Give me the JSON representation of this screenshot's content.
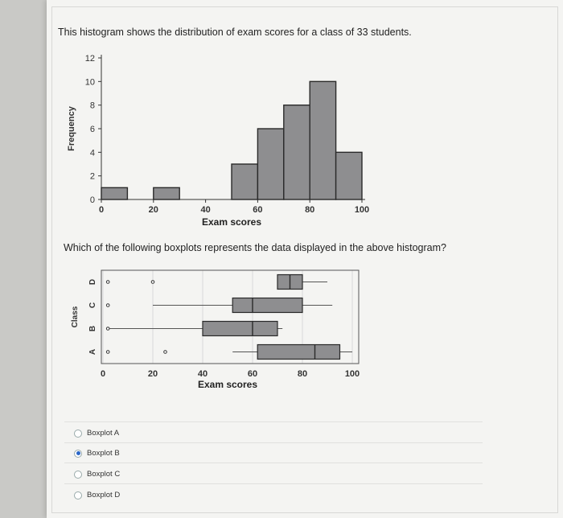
{
  "question": {
    "intro": "This histogram shows the distribution of exam scores for a class of 33 students.",
    "prompt": "Which of the following boxplots represents the data displayed in the above histogram?"
  },
  "chart_data": [
    {
      "type": "bar",
      "xlabel": "Exam scores",
      "ylabel": "Frequency",
      "xlim": [
        0,
        100
      ],
      "ylim": [
        0,
        12
      ],
      "x_ticks": [
        0,
        20,
        40,
        60,
        80,
        100
      ],
      "y_ticks": [
        0,
        2,
        4,
        6,
        8,
        10,
        12
      ],
      "bins": [
        {
          "start": 0,
          "end": 10,
          "value": 1
        },
        {
          "start": 10,
          "end": 20,
          "value": 0
        },
        {
          "start": 20,
          "end": 30,
          "value": 1
        },
        {
          "start": 30,
          "end": 40,
          "value": 0
        },
        {
          "start": 40,
          "end": 50,
          "value": 0
        },
        {
          "start": 50,
          "end": 60,
          "value": 3
        },
        {
          "start": 60,
          "end": 70,
          "value": 6
        },
        {
          "start": 70,
          "end": 80,
          "value": 8
        },
        {
          "start": 80,
          "end": 90,
          "value": 10
        },
        {
          "start": 90,
          "end": 100,
          "value": 4
        }
      ],
      "bar_color": "#8e8e90"
    },
    {
      "type": "boxplot",
      "xlabel": "Exam scores",
      "ylabel": "Class",
      "xlim": [
        0,
        100
      ],
      "x_ticks": [
        0,
        20,
        40,
        60,
        80,
        100
      ],
      "box_color": "#8e8e90",
      "boxes": [
        {
          "label": "A",
          "outliers": [
            2,
            25
          ],
          "whisker_low": 52,
          "q1": 62,
          "median": 85,
          "q3": 95,
          "whisker_high": 100
        },
        {
          "label": "B",
          "outliers": [
            2
          ],
          "whisker_low": 2,
          "q1": 40,
          "median": 60,
          "q3": 70,
          "whisker_high": 72
        },
        {
          "label": "C",
          "outliers": [
            2
          ],
          "whisker_low": 20,
          "q1": 52,
          "median": 60,
          "q3": 80,
          "whisker_high": 92
        },
        {
          "label": "D",
          "outliers": [
            2,
            20
          ],
          "whisker_low": 70,
          "q1": 70,
          "median": 75,
          "q3": 80,
          "whisker_high": 90
        }
      ]
    }
  ],
  "choices": [
    {
      "label": "Boxplot A",
      "selected": false
    },
    {
      "label": "Boxplot B",
      "selected": true
    },
    {
      "label": "Boxplot C",
      "selected": false
    },
    {
      "label": "Boxplot D",
      "selected": false
    }
  ]
}
